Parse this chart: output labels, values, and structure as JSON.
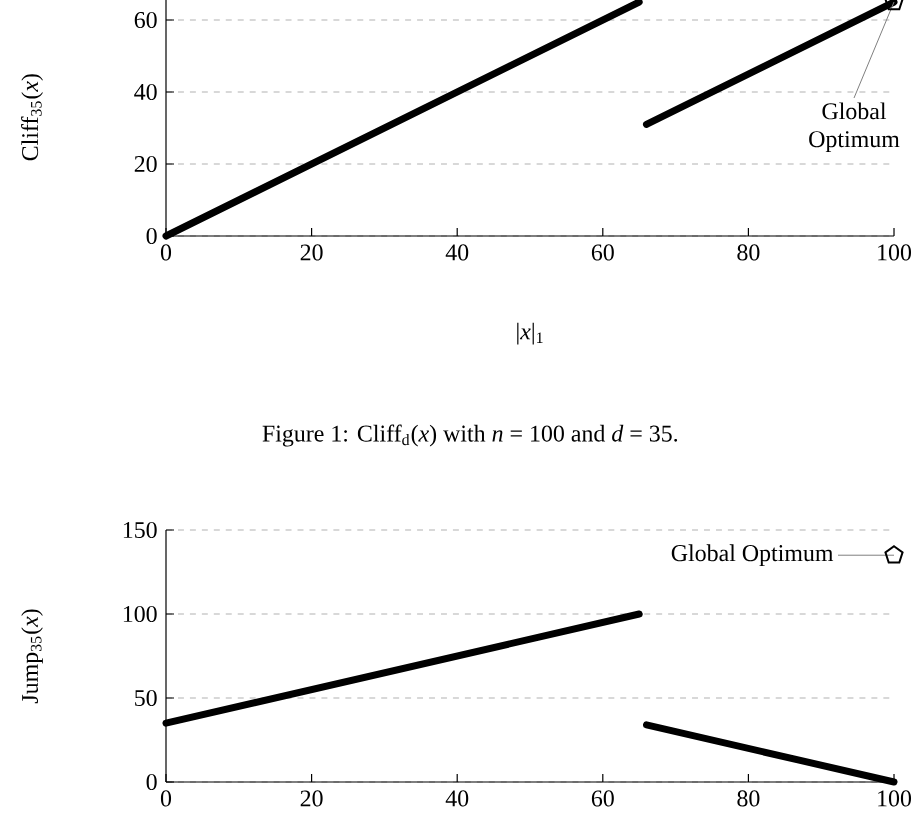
{
  "chart_data": [
    {
      "type": "line",
      "ylabel": "Cliff$_{35}$(*x*)",
      "xlabel": "|*x*|$_{1}$",
      "xlim": [
        0,
        100
      ],
      "ylim": [
        0,
        66
      ],
      "xticks": [
        0,
        20,
        40,
        60,
        80,
        100
      ],
      "yticks": [
        0,
        20,
        40,
        60
      ],
      "grid": "y",
      "series": [
        {
          "x": [
            0,
            65
          ],
          "values": [
            0,
            65
          ],
          "color": "#000000"
        },
        {
          "x": [
            66,
            100
          ],
          "values": [
            31,
            65
          ],
          "color": "#000000"
        },
        {
          "type": "scatter",
          "x": [
            100
          ],
          "values": [
            65
          ],
          "color": "#000000"
        }
      ],
      "annotations": [
        {
          "text": "Global Optimum",
          "x": 100,
          "y": 65
        },
        "Figure 1: Cliff$_{d}$(*x*) with *n* = 100 and *d* = 35."
      ]
    },
    {
      "type": "line",
      "ylabel": "Jump$_{35}$(*x*)",
      "xlim": [
        0,
        100
      ],
      "ylim": [
        0,
        150
      ],
      "xticks": [
        0,
        20,
        40,
        60,
        80,
        100
      ],
      "yticks": [
        0,
        50,
        100,
        150
      ],
      "grid": "y",
      "series": [
        {
          "x": [
            0,
            65
          ],
          "values": [
            35,
            100
          ],
          "color": "#000000"
        },
        {
          "x": [
            66,
            100
          ],
          "values": [
            34,
            0
          ],
          "color": "#000000"
        },
        {
          "type": "scatter",
          "x": [
            100
          ],
          "values": [
            135
          ],
          "color": "#000000"
        }
      ],
      "annotations": [
        {
          "text": "Global Optimum",
          "x": 100,
          "y": 135
        }
      ]
    }
  ]
}
